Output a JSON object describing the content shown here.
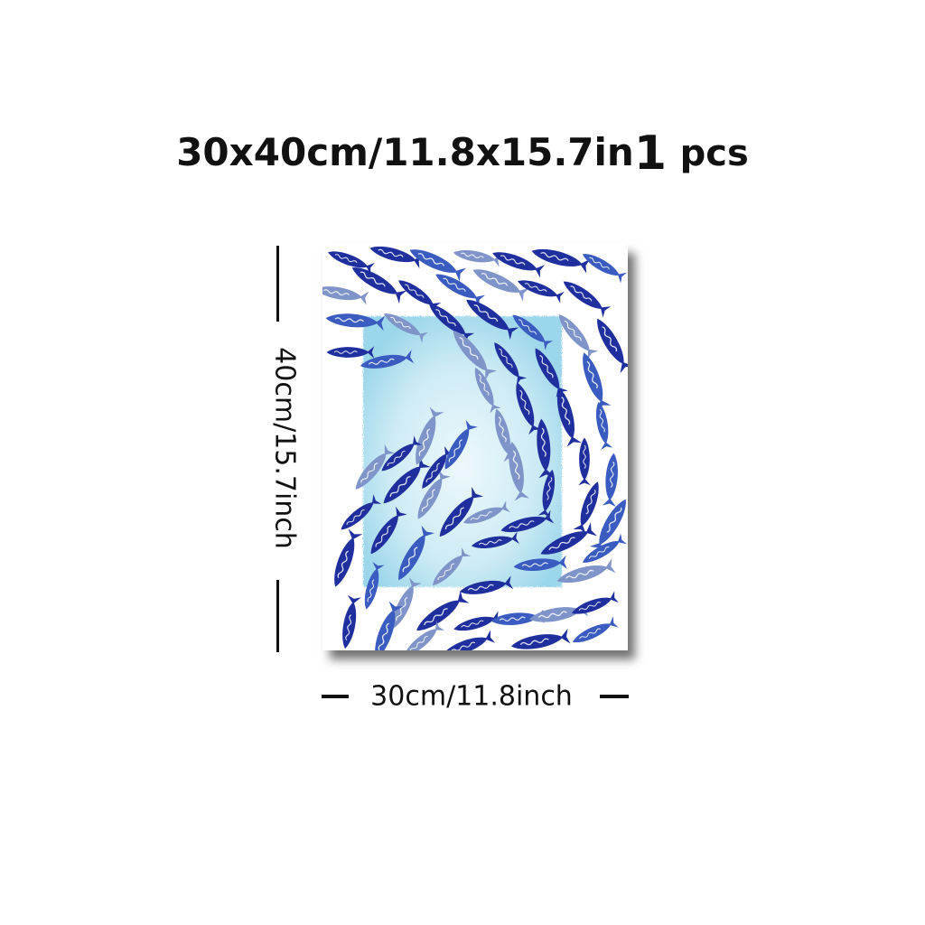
{
  "header": {
    "size_text": "30x40cm/11.8x15.7in",
    "quantity": "1",
    "quantity_unit": "pcs"
  },
  "dimensions": {
    "height_label": "40cm/15.7inch",
    "width_label": "30cm/11.8inch"
  },
  "artwork": {
    "subject": "school-of-blue-fish-icon",
    "colors": {
      "fish_dark": "#1f2f9e",
      "fish_mid": "#3a5bbf",
      "fish_light": "#7f94c8",
      "wash": "#8fd3ea"
    }
  }
}
